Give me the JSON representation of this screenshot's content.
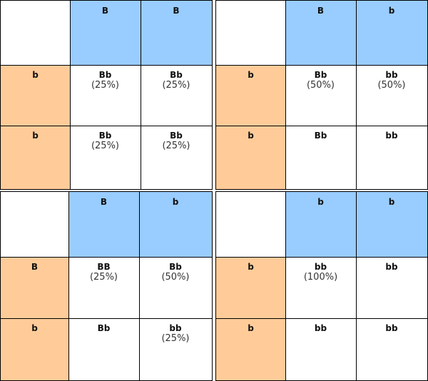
{
  "squares": [
    {
      "top": [
        "B",
        "B"
      ],
      "left": [
        "b",
        "b"
      ],
      "cells": [
        [
          {
            "label": "Bb",
            "pct": "(25%)"
          },
          {
            "label": "Bb",
            "pct": "(25%)"
          }
        ],
        [
          {
            "label": "Bb",
            "pct": "(25%)"
          },
          {
            "label": "Bb",
            "pct": "(25%)"
          }
        ]
      ]
    },
    {
      "top": [
        "B",
        "b"
      ],
      "left": [
        "b",
        "b"
      ],
      "cells": [
        [
          {
            "label": "Bb",
            "pct": "(50%)"
          },
          {
            "label": "bb",
            "pct": "(50%)"
          }
        ],
        [
          {
            "label": "Bb",
            "pct": ""
          },
          {
            "label": "bb",
            "pct": ""
          }
        ]
      ]
    },
    {
      "top": [
        "B",
        "b"
      ],
      "left": [
        "B",
        "b"
      ],
      "cells": [
        [
          {
            "label": "BB",
            "pct": "(25%)"
          },
          {
            "label": "Bb",
            "pct": "(50%)"
          }
        ],
        [
          {
            "label": "Bb",
            "pct": ""
          },
          {
            "label": "bb",
            "pct": "(25%)"
          }
        ]
      ]
    },
    {
      "top": [
        "b",
        "b"
      ],
      "left": [
        "b",
        "b"
      ],
      "cells": [
        [
          {
            "label": "bb",
            "pct": "(100%)"
          },
          {
            "label": "bb",
            "pct": ""
          }
        ],
        [
          {
            "label": "bb",
            "pct": ""
          },
          {
            "label": "bb",
            "pct": ""
          }
        ]
      ]
    }
  ],
  "colors": {
    "top_header": "#99ccff",
    "left_header": "#ffcc99",
    "grid_line": "#000000"
  }
}
